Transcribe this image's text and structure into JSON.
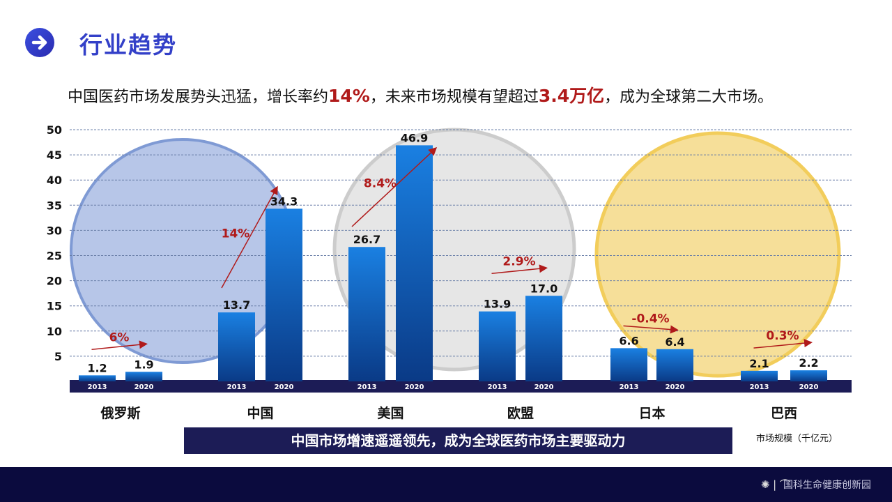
{
  "header": {
    "title": "行业趋势",
    "icon": "arrow-right-circle-icon"
  },
  "subtitle": {
    "part1": "中国医药市场发展势头迅猛，增长率约",
    "hl1": "14%",
    "part2": "，未来市场规模有望超过",
    "hl2": "3.4万亿",
    "part3": "，成为全球第二大市场。"
  },
  "banner": "中国市场增速遥遥领先，成为全球医药市场主要驱动力",
  "unit": "市场规模（千亿元）",
  "footer": {
    "text": "国科生命健康创新园"
  },
  "colors": {
    "bar_top": "#1a7fe0",
    "bar_bottom": "#0b3d8a",
    "growth": "#b01a1a",
    "axis_band": "#1c1c56"
  },
  "chart_data": {
    "type": "bar",
    "ylim": [
      0,
      50
    ],
    "yticks": [
      5,
      10,
      15,
      20,
      25,
      30,
      35,
      40,
      45,
      50
    ],
    "grid": true,
    "categories": [
      "俄罗斯",
      "中国",
      "美国",
      "欧盟",
      "日本",
      "巴西"
    ],
    "years": [
      "2013",
      "2020"
    ],
    "values": [
      [
        1.2,
        1.9
      ],
      [
        13.7,
        34.3
      ],
      [
        26.7,
        46.9
      ],
      [
        13.9,
        17.0
      ],
      [
        6.6,
        6.4
      ],
      [
        2.1,
        2.2
      ]
    ],
    "value_labels": [
      [
        "1.2",
        "1.9"
      ],
      [
        "13.7",
        "34.3"
      ],
      [
        "26.7",
        "46.9"
      ],
      [
        "13.9",
        "17.0"
      ],
      [
        "6.6",
        "6.4"
      ],
      [
        "2.1",
        "2.2"
      ]
    ],
    "growth": [
      "6%",
      "14%",
      "8.4%",
      "2.9%",
      "-0.4%",
      "0.3%"
    ]
  }
}
